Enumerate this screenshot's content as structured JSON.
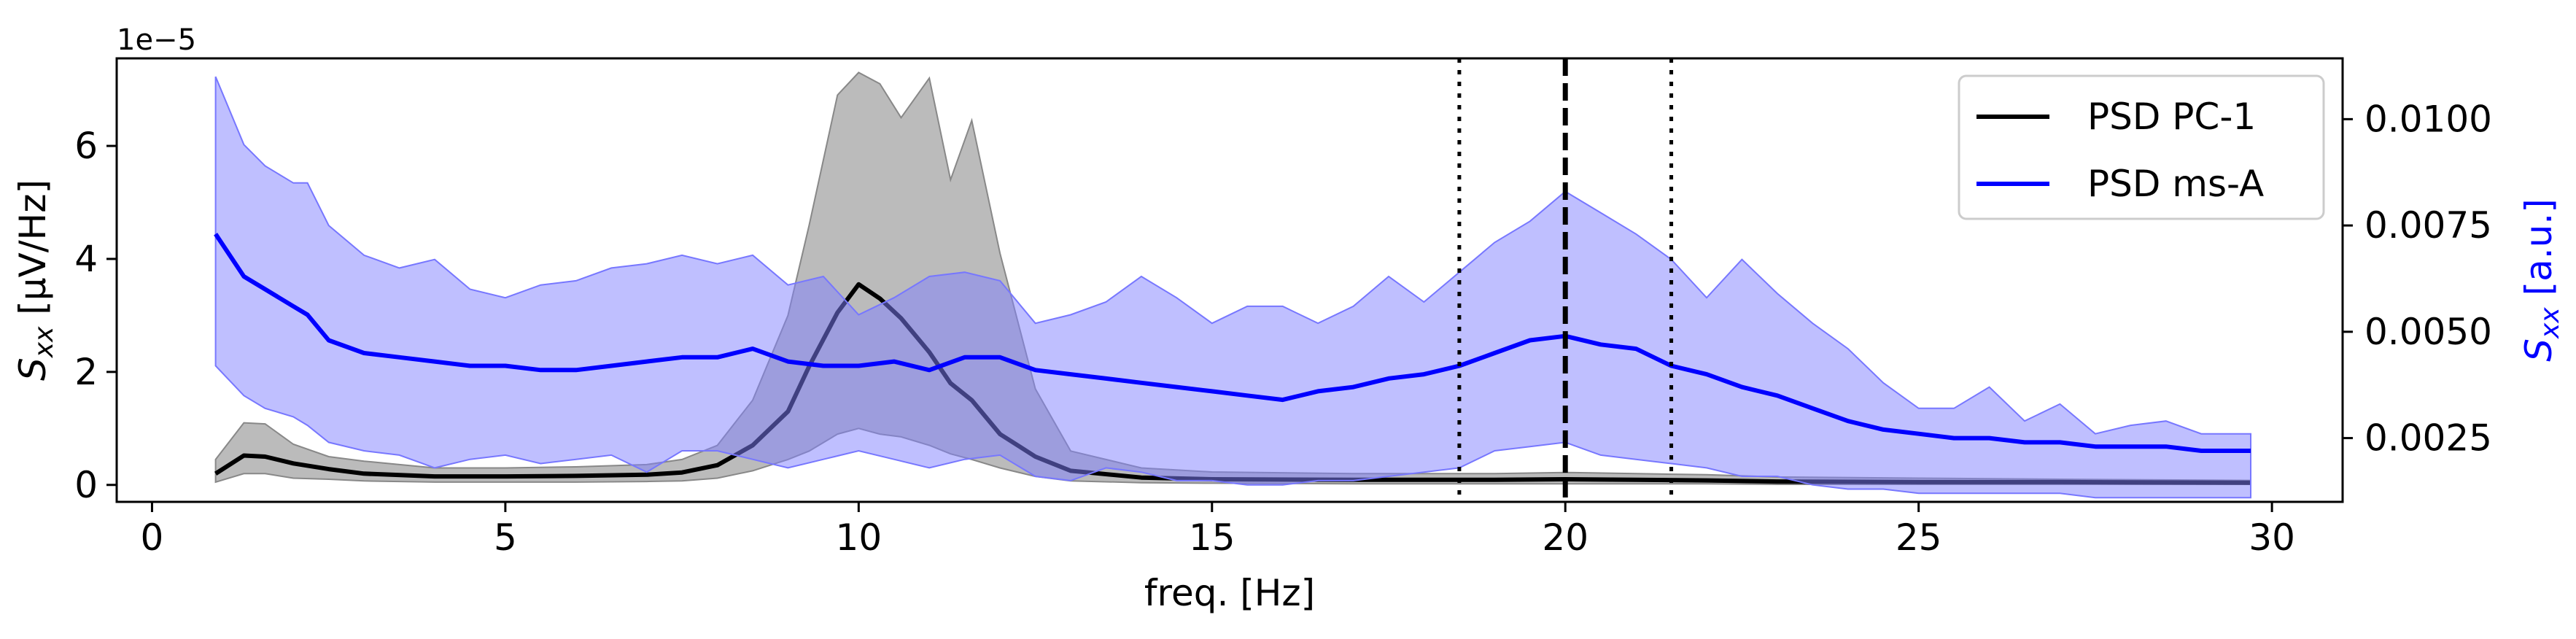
{
  "chart_data": {
    "type": "line",
    "title": "",
    "xlabel": "freq. [Hz]",
    "ylabel_left": "S_xx [μV/Hz]",
    "ylabel_left_parts": {
      "sym": "S",
      "sub": "xx",
      "rest": " [μV/Hz]"
    },
    "ylabel_right": "S_xx [a.u.]",
    "ylabel_right_parts": {
      "sym": "S",
      "sub": "xx",
      "rest": " [a.u.]"
    },
    "left_offset_text": "1e−5",
    "xlim": [
      -0.5,
      31
    ],
    "ylim_left": [
      -0.3,
      7.55
    ],
    "ylim_left_scale": "×1e-5",
    "ylim_right": [
      0.001,
      0.01143
    ],
    "xticks": [
      0,
      5,
      10,
      15,
      20,
      25,
      30
    ],
    "yticks_left": [
      0,
      2,
      4,
      6
    ],
    "yticks_right": [
      0.0025,
      0.005,
      0.0075,
      0.01
    ],
    "yticks_right_labels": [
      "0.0025",
      "0.0050",
      "0.0075",
      "0.0100"
    ],
    "grid": false,
    "legend_position": "top-right",
    "vertical_lines": [
      {
        "x": 18.5,
        "style": "dotted"
      },
      {
        "x": 20.0,
        "style": "dashed"
      },
      {
        "x": 21.5,
        "style": "dotted"
      }
    ],
    "colors": {
      "pc1_line": "#000000",
      "pc1_band": "#9e9e9e",
      "msa_line": "#0000ff",
      "msa_band": "#7f7fff",
      "right_axis_label": "#0000ff"
    },
    "series": [
      {
        "name": "PSD PC-1",
        "axis": "left",
        "x": [
          0.9,
          1.3,
          1.6,
          2.0,
          2.5,
          3.0,
          4.0,
          5.0,
          6.0,
          7.0,
          7.5,
          8.0,
          8.5,
          9.0,
          9.3,
          9.7,
          10.0,
          10.3,
          10.6,
          11.0,
          11.3,
          11.6,
          12.0,
          12.5,
          13.0,
          14.0,
          15.0,
          17.0,
          19.0,
          20.0,
          21.0,
          22.0,
          23.0,
          25.0,
          27.0,
          29.7
        ],
        "values": [
          0.2,
          0.52,
          0.5,
          0.38,
          0.28,
          0.2,
          0.15,
          0.15,
          0.16,
          0.18,
          0.22,
          0.35,
          0.7,
          1.3,
          2.1,
          3.05,
          3.55,
          3.3,
          2.95,
          2.35,
          1.8,
          1.5,
          0.9,
          0.5,
          0.25,
          0.13,
          0.1,
          0.09,
          0.09,
          0.1,
          0.09,
          0.08,
          0.06,
          0.05,
          0.05,
          0.04
        ],
        "band_upper": [
          0.45,
          1.1,
          1.08,
          0.72,
          0.5,
          0.42,
          0.3,
          0.3,
          0.32,
          0.36,
          0.45,
          0.7,
          1.5,
          3.0,
          4.6,
          6.9,
          7.3,
          7.1,
          6.5,
          7.2,
          5.4,
          6.45,
          4.1,
          1.7,
          0.6,
          0.3,
          0.23,
          0.2,
          0.2,
          0.22,
          0.2,
          0.18,
          0.14,
          0.12,
          0.1,
          0.08
        ],
        "band_lower": [
          0.05,
          0.2,
          0.2,
          0.12,
          0.1,
          0.07,
          0.05,
          0.05,
          0.05,
          0.06,
          0.07,
          0.12,
          0.25,
          0.45,
          0.6,
          0.9,
          1.0,
          0.9,
          0.85,
          0.7,
          0.55,
          0.45,
          0.3,
          0.15,
          0.07,
          0.04,
          0.03,
          0.02,
          0.02,
          0.02,
          0.02,
          0.02,
          0.01,
          0.01,
          0.01,
          0.01
        ]
      },
      {
        "name": "PSD ms-A",
        "axis": "right",
        "x": [
          0.9,
          1.3,
          1.6,
          2.0,
          2.2,
          2.5,
          3.0,
          3.5,
          4.0,
          4.5,
          5.0,
          5.5,
          6.0,
          6.5,
          7.0,
          7.5,
          8.0,
          8.5,
          9.0,
          9.5,
          10.0,
          10.5,
          11.0,
          11.5,
          12.0,
          12.5,
          13.0,
          13.5,
          14.0,
          14.5,
          15.0,
          15.5,
          16.0,
          16.5,
          17.0,
          17.5,
          18.0,
          18.5,
          19.0,
          19.5,
          20.0,
          20.5,
          21.0,
          21.5,
          22.0,
          22.5,
          23.0,
          23.5,
          24.0,
          24.5,
          25.0,
          25.5,
          26.0,
          26.5,
          27.0,
          27.5,
          28.0,
          28.5,
          29.0,
          29.7
        ],
        "values": [
          0.0073,
          0.0063,
          0.006,
          0.0056,
          0.0054,
          0.0048,
          0.0045,
          0.0044,
          0.0043,
          0.0042,
          0.0042,
          0.0041,
          0.0041,
          0.0042,
          0.0043,
          0.0044,
          0.0044,
          0.0046,
          0.0043,
          0.0042,
          0.0042,
          0.0043,
          0.0041,
          0.0044,
          0.0044,
          0.0041,
          0.004,
          0.0039,
          0.0038,
          0.0037,
          0.0036,
          0.0035,
          0.0034,
          0.0036,
          0.0037,
          0.0039,
          0.004,
          0.0042,
          0.0045,
          0.0048,
          0.0049,
          0.0047,
          0.0046,
          0.0042,
          0.004,
          0.0037,
          0.0035,
          0.0032,
          0.0029,
          0.0027,
          0.0026,
          0.0025,
          0.0025,
          0.0024,
          0.0024,
          0.0023,
          0.0023,
          0.0023,
          0.0022,
          0.0022
        ],
        "band_upper": [
          0.011,
          0.0094,
          0.0089,
          0.0085,
          0.0085,
          0.0075,
          0.0068,
          0.0065,
          0.0067,
          0.006,
          0.0058,
          0.0061,
          0.0062,
          0.0065,
          0.0066,
          0.0068,
          0.0066,
          0.0068,
          0.0061,
          0.0063,
          0.0054,
          0.0058,
          0.0063,
          0.0064,
          0.0062,
          0.0052,
          0.0054,
          0.0057,
          0.0063,
          0.0058,
          0.0052,
          0.0056,
          0.0056,
          0.0052,
          0.0056,
          0.0063,
          0.0057,
          0.0064,
          0.0071,
          0.0076,
          0.0083,
          0.0078,
          0.0073,
          0.0067,
          0.0058,
          0.0067,
          0.0059,
          0.0052,
          0.0046,
          0.0038,
          0.0032,
          0.0032,
          0.0037,
          0.0029,
          0.0033,
          0.0026,
          0.0028,
          0.0029,
          0.0026,
          0.0026
        ],
        "band_lower": [
          0.0042,
          0.0035,
          0.0032,
          0.003,
          0.0028,
          0.0024,
          0.0022,
          0.0021,
          0.0018,
          0.002,
          0.0021,
          0.0019,
          0.002,
          0.0021,
          0.0017,
          0.0022,
          0.0022,
          0.002,
          0.0018,
          0.002,
          0.0022,
          0.002,
          0.0018,
          0.002,
          0.0021,
          0.0016,
          0.0015,
          0.0018,
          0.0017,
          0.0015,
          0.0015,
          0.0014,
          0.0014,
          0.0015,
          0.0015,
          0.0016,
          0.0017,
          0.0018,
          0.0022,
          0.0023,
          0.0024,
          0.0021,
          0.002,
          0.0019,
          0.0018,
          0.0016,
          0.0016,
          0.0014,
          0.0013,
          0.0013,
          0.0012,
          0.0012,
          0.0012,
          0.0012,
          0.0012,
          0.0011,
          0.0011,
          0.0011,
          0.0011,
          0.0011
        ]
      }
    ]
  }
}
